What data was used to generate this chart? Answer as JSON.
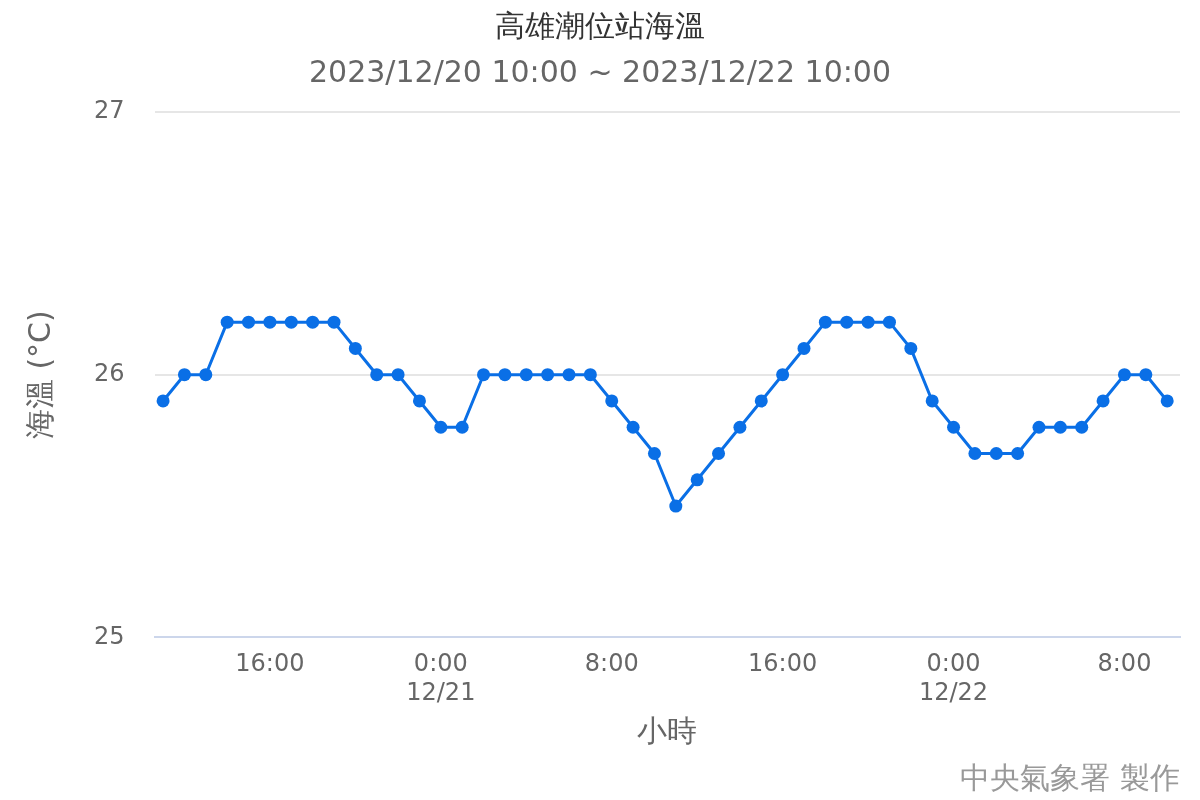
{
  "chart_data": {
    "type": "line",
    "title": "高雄潮位站海溫",
    "subtitle": "2023/12/20 10:00 ~ 2023/12/22 10:00",
    "xlabel": "小時",
    "ylabel": "海溫 (°C)",
    "x": [
      "2023-12-20T11:00",
      "2023-12-20T12:00",
      "2023-12-20T13:00",
      "2023-12-20T14:00",
      "2023-12-20T15:00",
      "2023-12-20T16:00",
      "2023-12-20T17:00",
      "2023-12-20T18:00",
      "2023-12-20T19:00",
      "2023-12-20T20:00",
      "2023-12-20T21:00",
      "2023-12-20T22:00",
      "2023-12-20T23:00",
      "2023-12-21T00:00",
      "2023-12-21T01:00",
      "2023-12-21T02:00",
      "2023-12-21T03:00",
      "2023-12-21T04:00",
      "2023-12-21T05:00",
      "2023-12-21T06:00",
      "2023-12-21T07:00",
      "2023-12-21T08:00",
      "2023-12-21T09:00",
      "2023-12-21T10:00",
      "2023-12-21T11:00",
      "2023-12-21T12:00",
      "2023-12-21T13:00",
      "2023-12-21T14:00",
      "2023-12-21T15:00",
      "2023-12-21T16:00",
      "2023-12-21T17:00",
      "2023-12-21T18:00",
      "2023-12-21T19:00",
      "2023-12-21T20:00",
      "2023-12-21T21:00",
      "2023-12-21T22:00",
      "2023-12-21T23:00",
      "2023-12-22T00:00",
      "2023-12-22T01:00",
      "2023-12-22T02:00",
      "2023-12-22T03:00",
      "2023-12-22T04:00",
      "2023-12-22T05:00",
      "2023-12-22T06:00",
      "2023-12-22T07:00",
      "2023-12-22T08:00",
      "2023-12-22T09:00",
      "2023-12-22T10:00"
    ],
    "series": [
      {
        "color": "#0a6fe6",
        "values": [
          25.9,
          26.0,
          26.0,
          26.2,
          26.2,
          26.2,
          26.2,
          26.2,
          26.2,
          26.1,
          26.0,
          26.0,
          25.9,
          25.8,
          25.8,
          26.0,
          26.0,
          26.0,
          26.0,
          26.0,
          26.0,
          25.9,
          25.8,
          25.7,
          25.5,
          25.6,
          25.7,
          25.8,
          25.9,
          26.0,
          26.1,
          26.2,
          26.2,
          26.2,
          26.2,
          26.1,
          25.9,
          25.8,
          25.7,
          25.7,
          25.7,
          25.8,
          25.8,
          25.8,
          25.9,
          26.0,
          26.0,
          25.9
        ]
      }
    ],
    "xlim": [
      "2023-12-20T10:36",
      "2023-12-22T10:36"
    ],
    "xticks": [
      {
        "value": "2023-12-20T16:00",
        "label": "16:00"
      },
      {
        "value": "2023-12-21T00:00",
        "label": "0:00\n12/21"
      },
      {
        "value": "2023-12-21T08:00",
        "label": "8:00"
      },
      {
        "value": "2023-12-21T16:00",
        "label": "16:00"
      },
      {
        "value": "2023-12-22T00:00",
        "label": "0:00\n12/22"
      },
      {
        "value": "2023-12-22T08:00",
        "label": "8:00"
      }
    ],
    "ylim": [
      25,
      27
    ],
    "yticks": [
      25,
      26,
      27
    ],
    "grid": "y",
    "legend": false,
    "marker": "circle",
    "line_style": "solid",
    "annotations": [
      "中央氣象署 製作"
    ]
  }
}
